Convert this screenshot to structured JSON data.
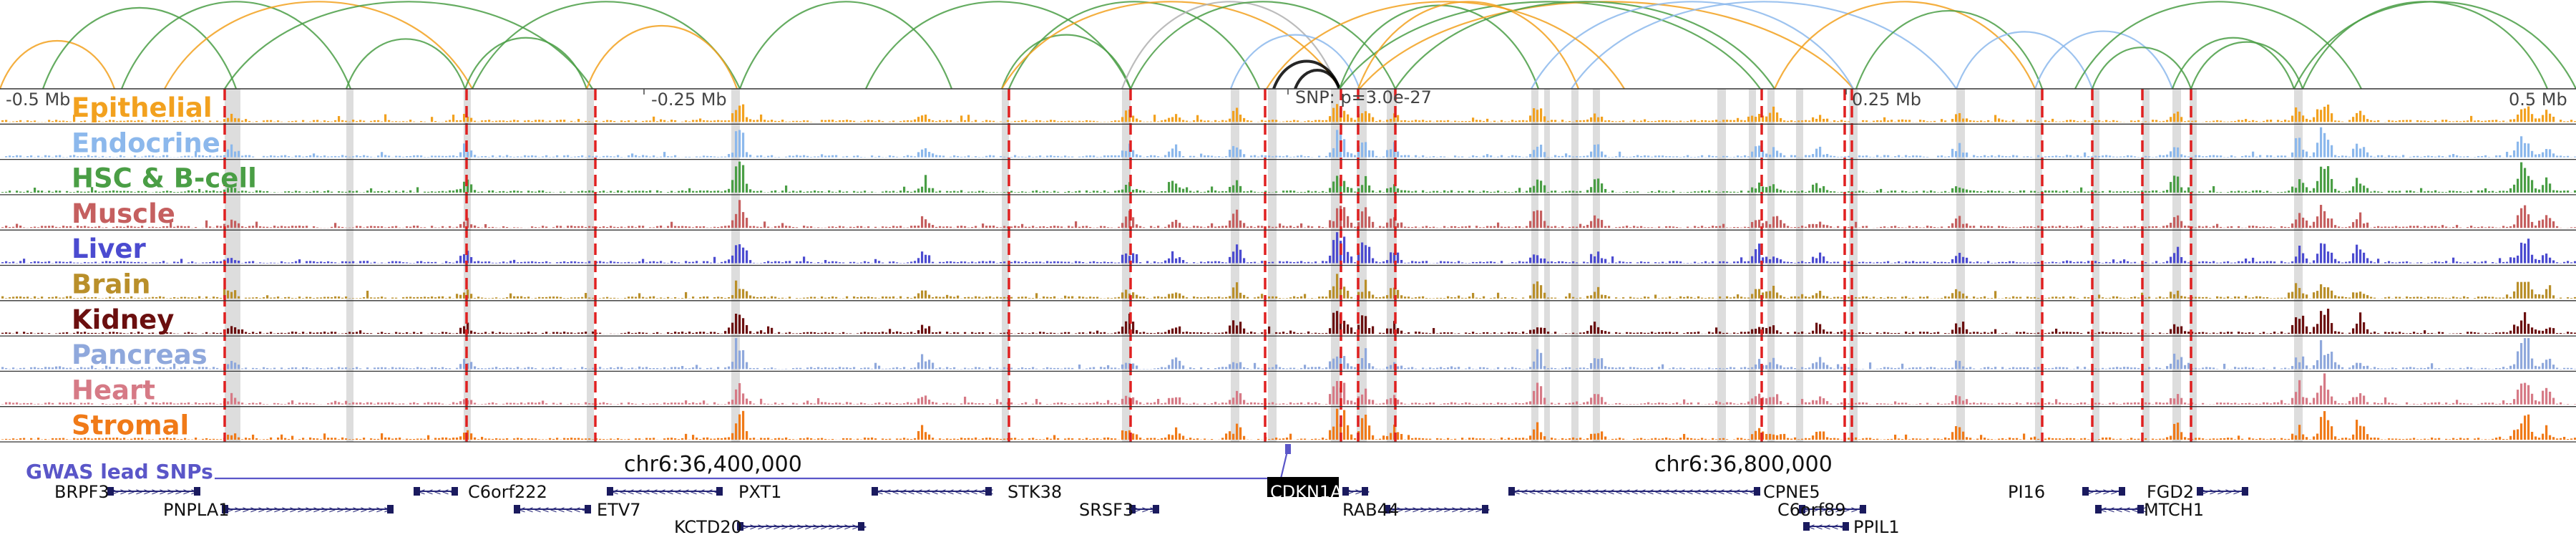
{
  "axis": {
    "ticks": [
      "-0.5 Mb",
      "-0.25 Mb",
      "0.25 Mb",
      "0.5 Mb"
    ],
    "snp_label": "SNP: p=3.0e-27",
    "coordinates": [
      "chr6:36,400,000",
      "chr6:36,800,000"
    ]
  },
  "tracks": [
    {
      "label": "Epithelial",
      "color": "#f2a11f"
    },
    {
      "label": "Endocrine",
      "color": "#8cb8ec"
    },
    {
      "label": "HSC & B-cell",
      "color": "#4a9e45"
    },
    {
      "label": "Muscle",
      "color": "#c55f5f"
    },
    {
      "label": "Liver",
      "color": "#4b4bd0"
    },
    {
      "label": "Brain",
      "color": "#b98f2a"
    },
    {
      "label": "Kidney",
      "color": "#6b0f0f"
    },
    {
      "label": "Pancreas",
      "color": "#8fa8dc"
    },
    {
      "label": "Heart",
      "color": "#d67a86"
    },
    {
      "label": "Stromal",
      "color": "#f07a18"
    }
  ],
  "gwas_label": "GWAS lead SNPs",
  "gwas_color": "#5a56c8",
  "genes": [
    {
      "name": "BRPF3",
      "strand": "+"
    },
    {
      "name": "PNPLA1",
      "strand": "+"
    },
    {
      "name": "C6orf222",
      "strand": "-"
    },
    {
      "name": "ETV7",
      "strand": "-"
    },
    {
      "name": "PXT1",
      "strand": "-"
    },
    {
      "name": "KCTD20",
      "strand": "+"
    },
    {
      "name": "STK38",
      "strand": "-"
    },
    {
      "name": "SRSF3",
      "strand": "+"
    },
    {
      "name": "CDKN1A",
      "strand": "+",
      "highlight": true
    },
    {
      "name": "RAB44",
      "strand": "+"
    },
    {
      "name": "CPNE5",
      "strand": "-"
    },
    {
      "name": "C6orf89",
      "strand": "+"
    },
    {
      "name": "PPIL1",
      "strand": "-"
    },
    {
      "name": "PI16",
      "strand": "+"
    },
    {
      "name": "FGD2",
      "strand": "+"
    },
    {
      "name": "MTCH1",
      "strand": "-"
    }
  ],
  "arc_colors": [
    "#f2a11f",
    "#4a9e45",
    "#8cb8ec",
    "#b0b0b0",
    "#000000"
  ]
}
